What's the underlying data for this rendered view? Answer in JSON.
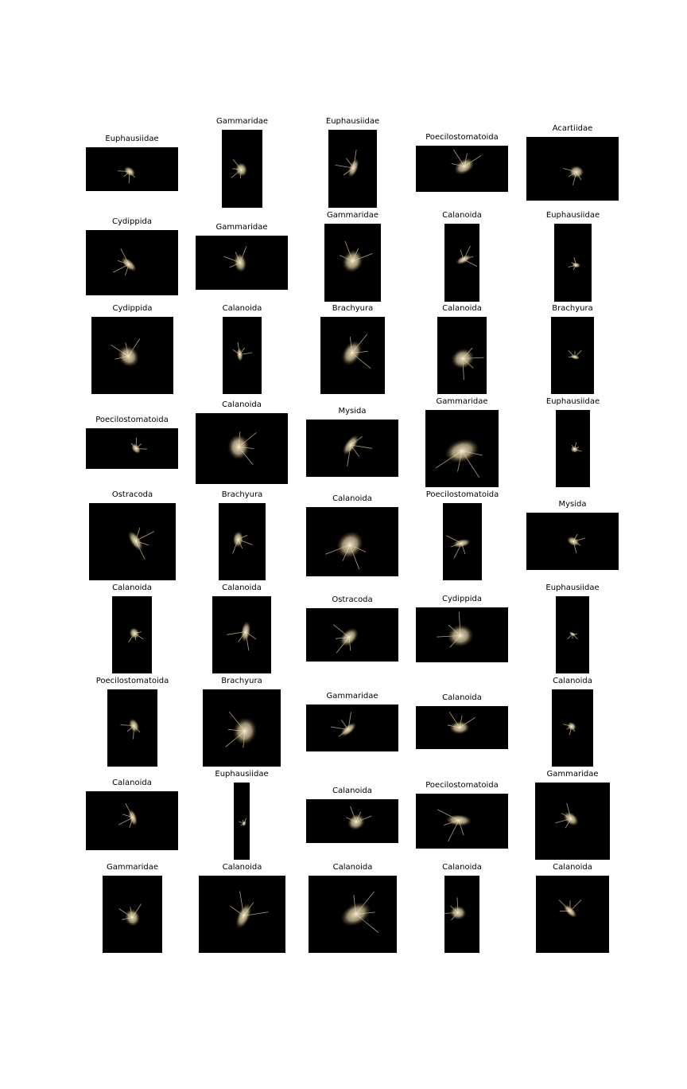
{
  "rows": [
    [
      "Euphausiidae",
      "Gammaridae",
      "Euphausiidae",
      "Poecilostomatoida",
      "Acartiidae"
    ],
    [
      "Cydippida",
      "Gammaridae",
      "Gammaridae",
      "Calanoida",
      "Euphausiidae"
    ],
    [
      "Cydippida",
      "Calanoida",
      "Brachyura",
      "Calanoida",
      "Brachyura"
    ],
    [
      "Poecilostomatoida",
      "Calanoida",
      "Mysida",
      "Gammaridae",
      "Euphausiidae"
    ],
    [
      "Ostracoda",
      "Brachyura",
      "Calanoida",
      "Poecilostomatoida",
      "Mysida"
    ],
    [
      "Calanoida",
      "Calanoida",
      "Ostracoda",
      "Cydippida",
      "Euphausiidae"
    ],
    [
      "Poecilostomatoida",
      "Brachyura",
      "Gammaridae",
      "Calanoida",
      "Calanoida"
    ],
    [
      "Calanoida",
      "Euphausiidae",
      "Calanoida",
      "Poecilostomatoida",
      "Gammaridae"
    ],
    [
      "Gammaridae",
      "Calanoida",
      "Calanoida",
      "Calanoida",
      "Calanoida"
    ]
  ],
  "colors": {
    "background": "#ffffff",
    "thumbnail": "#000000",
    "organism": "#d9c9a0"
  }
}
